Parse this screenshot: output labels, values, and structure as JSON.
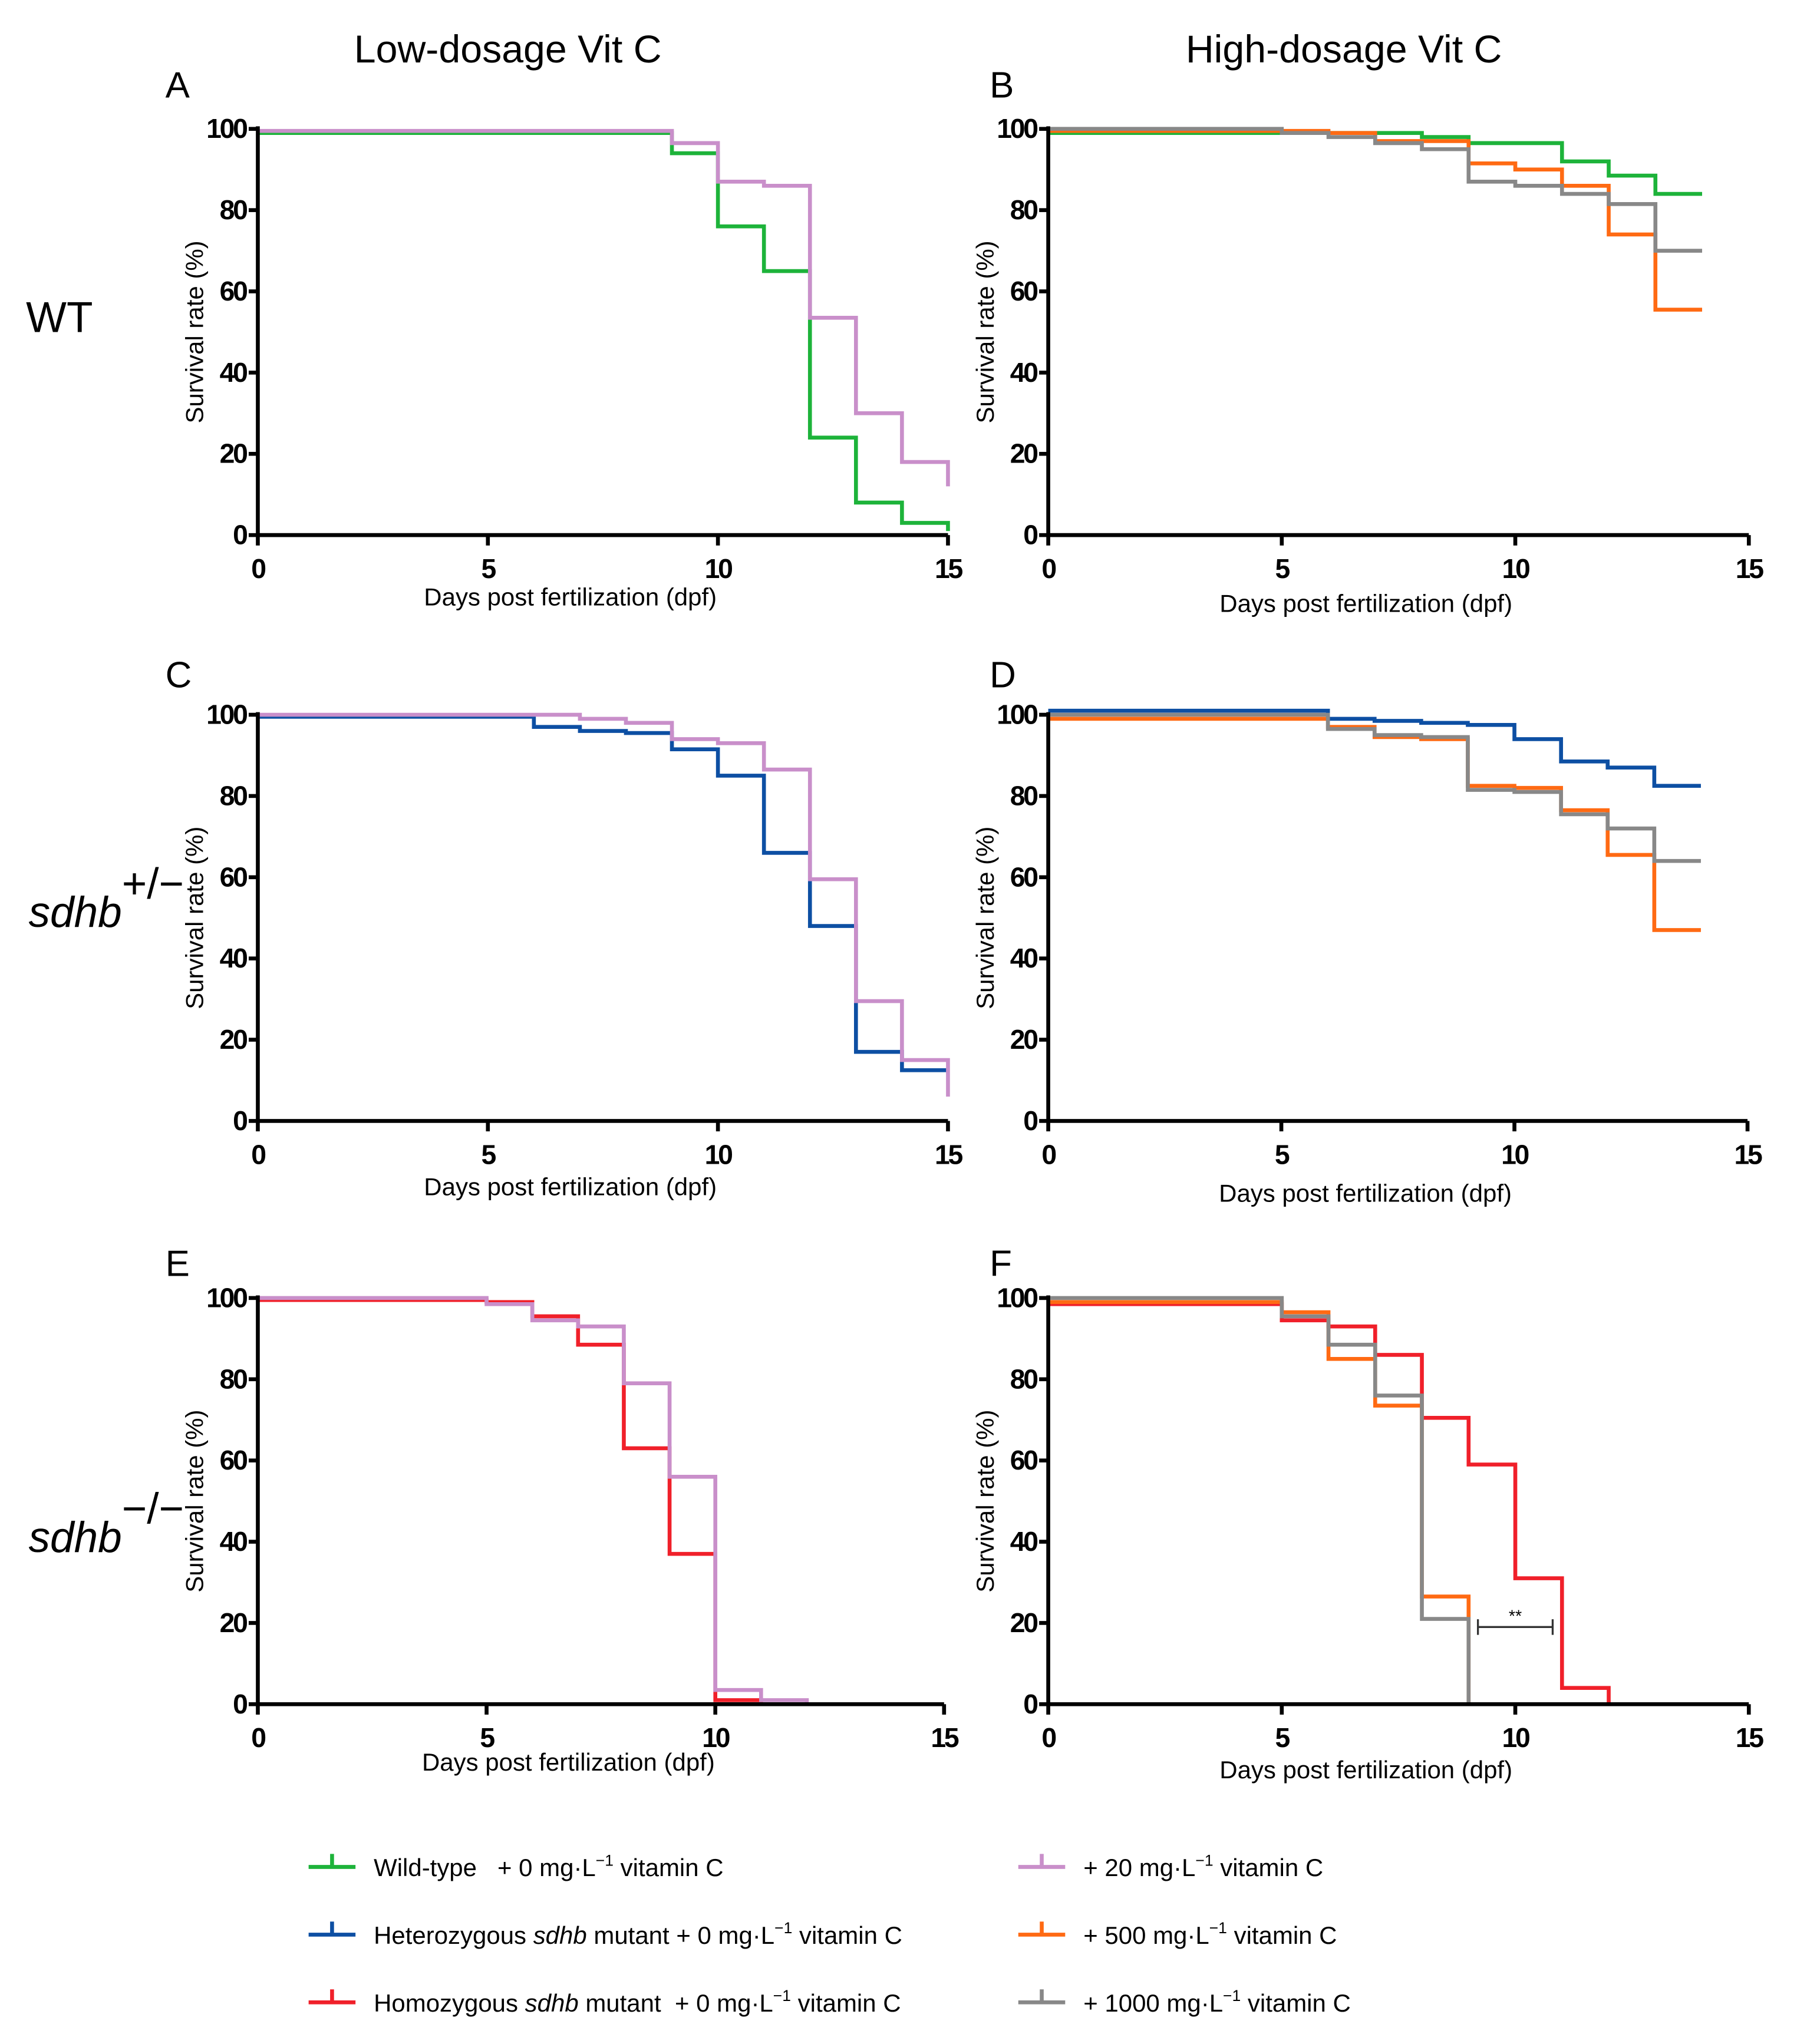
{
  "column_titles": [
    "Low-dosage Vit C",
    "High-dosage Vit C"
  ],
  "row_labels": [
    {
      "main": "WT",
      "sup": ""
    },
    {
      "main": "sdhb",
      "sup": "+/−"
    },
    {
      "main": "sdhb",
      "sup": "−/−"
    }
  ],
  "colors": {
    "wildtype": "#1db33a",
    "heterozygous": "#0d4fa3",
    "homozygous": "#f0202a",
    "vitc20": "#c98fca",
    "vitc500": "#ff6a13",
    "vitc1000": "#888888"
  },
  "legend": [
    {
      "key": "wildtype",
      "pre": "Wild-type",
      "italic": "",
      "post": "",
      "dose": "   + 0 mg·L",
      "sup": "−1",
      "tail": " vitamin C"
    },
    {
      "key": "heterozygous",
      "pre": "Heterozygous ",
      "italic": "sdhb",
      "post": " mutant",
      "dose": " + 0 mg·L",
      "sup": "−1",
      "tail": " vitamin C"
    },
    {
      "key": "homozygous",
      "pre": "Homozygous ",
      "italic": "sdhb",
      "post": " mutant",
      "dose": "  + 0 mg·L",
      "sup": "−1",
      "tail": " vitamin C"
    },
    {
      "key": "vitc20",
      "pre": "",
      "italic": "",
      "post": "",
      "dose": "+ 20 mg·L",
      "sup": "−1",
      "tail": " vitamin C"
    },
    {
      "key": "vitc500",
      "pre": "",
      "italic": "",
      "post": "",
      "dose": "+ 500 mg·L",
      "sup": "−1",
      "tail": " vitamin C"
    },
    {
      "key": "vitc1000",
      "pre": "",
      "italic": "",
      "post": "",
      "dose": "+ 1000 mg·L",
      "sup": "−1",
      "tail": " vitamin C"
    }
  ],
  "chart_data": [
    {
      "panel": "A",
      "type": "line",
      "step": true,
      "xlabel": "Days post fertilization (dpf)",
      "ylabel": "Survival rate (%)",
      "xlim": [
        0,
        15
      ],
      "ylim": [
        0,
        100
      ],
      "xticks": [
        "0",
        "5",
        "10",
        "15"
      ],
      "yticks": [
        "0",
        "20",
        "40",
        "60",
        "80",
        "100"
      ],
      "grid": false,
      "series": [
        {
          "name": "Wild-type + 0 mg/L vitamin C",
          "key": "wildtype",
          "steps": [
            [
              0,
              99
            ],
            [
              9,
              94
            ],
            [
              10,
              76
            ],
            [
              11,
              65
            ],
            [
              12,
              24
            ],
            [
              13,
              8
            ],
            [
              14,
              3
            ],
            [
              15,
              1
            ]
          ],
          "end": 15
        },
        {
          "name": "+ 20 mg/L vitamin C",
          "key": "vitc20",
          "steps": [
            [
              0,
              99.5
            ],
            [
              9,
              96.5
            ],
            [
              10,
              87
            ],
            [
              11,
              86
            ],
            [
              12,
              53.5
            ],
            [
              13,
              30
            ],
            [
              14,
              18
            ],
            [
              15,
              12
            ]
          ],
          "end": 15
        }
      ]
    },
    {
      "panel": "B",
      "type": "line",
      "step": true,
      "xlabel": "Days post fertilization (dpf)",
      "ylabel": "Survival rate (%)",
      "xlim": [
        0,
        15
      ],
      "ylim": [
        0,
        100
      ],
      "xticks": [
        "0",
        "5",
        "10",
        "15"
      ],
      "yticks": [
        "0",
        "20",
        "40",
        "60",
        "80",
        "100"
      ],
      "grid": false,
      "series": [
        {
          "name": "Wild-type + 0 mg/L vitamin C",
          "key": "wildtype",
          "steps": [
            [
              0,
              99
            ],
            [
              8,
              98
            ],
            [
              9,
              96.5
            ],
            [
              11,
              92
            ],
            [
              12,
              88.5
            ],
            [
              13,
              84
            ]
          ],
          "end": 14
        },
        {
          "name": "+ 500 mg/L vitamin C",
          "key": "vitc500",
          "steps": [
            [
              0,
              99.5
            ],
            [
              6,
              99
            ],
            [
              7,
              97
            ],
            [
              9,
              91.5
            ],
            [
              10,
              90
            ],
            [
              11,
              86
            ],
            [
              12,
              74
            ],
            [
              13,
              55.5
            ]
          ],
          "end": 14
        },
        {
          "name": "+ 1000 mg/L vitamin C",
          "key": "vitc1000",
          "steps": [
            [
              0,
              100
            ],
            [
              5,
              99
            ],
            [
              6,
              98
            ],
            [
              7,
              96.5
            ],
            [
              8,
              95
            ],
            [
              9,
              87
            ],
            [
              10,
              86
            ],
            [
              11,
              84
            ],
            [
              12,
              81.5
            ],
            [
              13,
              70
            ]
          ],
          "end": 14
        }
      ]
    },
    {
      "panel": "C",
      "type": "line",
      "step": true,
      "xlabel": "Days post fertilization (dpf)",
      "ylabel": "Survival rate (%)",
      "xlim": [
        0,
        15
      ],
      "ylim": [
        0,
        100
      ],
      "xticks": [
        "0",
        "5",
        "10",
        "15"
      ],
      "yticks": [
        "0",
        "20",
        "40",
        "60",
        "80",
        "100"
      ],
      "grid": false,
      "series": [
        {
          "name": "Heterozygous sdhb mutant + 0 mg/L vitamin C",
          "key": "heterozygous",
          "steps": [
            [
              0,
              99.5
            ],
            [
              6,
              97
            ],
            [
              7,
              96
            ],
            [
              8,
              95.5
            ],
            [
              9,
              91.5
            ],
            [
              10,
              85
            ],
            [
              11,
              66
            ],
            [
              12,
              48
            ],
            [
              13,
              17
            ],
            [
              14,
              12.5
            ]
          ],
          "end": 15
        },
        {
          "name": "+ 20 mg/L vitamin C",
          "key": "vitc20",
          "steps": [
            [
              0,
              100
            ],
            [
              7,
              99
            ],
            [
              8,
              98
            ],
            [
              9,
              94
            ],
            [
              10,
              93
            ],
            [
              11,
              86.5
            ],
            [
              12,
              59.5
            ],
            [
              13,
              29.5
            ],
            [
              14,
              15
            ],
            [
              15,
              6
            ]
          ],
          "end": 15
        }
      ]
    },
    {
      "panel": "D",
      "type": "line",
      "step": true,
      "xlabel": "Days post fertilization (dpf)",
      "ylabel": "Survival rate (%)",
      "xlim": [
        0,
        15
      ],
      "ylim": [
        0,
        100
      ],
      "xticks": [
        "0",
        "5",
        "10",
        "15"
      ],
      "yticks": [
        "0",
        "20",
        "40",
        "60",
        "80",
        "100"
      ],
      "grid": false,
      "series": [
        {
          "name": "Heterozygous sdhb mutant + 0 mg/L vitamin C",
          "key": "heterozygous",
          "steps": [
            [
              0,
              101
            ],
            [
              6,
              99
            ],
            [
              7,
              98.5
            ],
            [
              8,
              98
            ],
            [
              9,
              97.5
            ],
            [
              10,
              94
            ],
            [
              11,
              88.5
            ],
            [
              12,
              87
            ],
            [
              13,
              82.5
            ]
          ],
          "end": 14
        },
        {
          "name": "+ 500 mg/L vitamin C",
          "key": "vitc500",
          "steps": [
            [
              0,
              99
            ],
            [
              6,
              97
            ],
            [
              7,
              94.5
            ],
            [
              8,
              94
            ],
            [
              9,
              82.5
            ],
            [
              10,
              82
            ],
            [
              11,
              76.5
            ],
            [
              12,
              65.5
            ],
            [
              13,
              47
            ]
          ],
          "end": 14
        },
        {
          "name": "+ 1000 mg/L vitamin C",
          "key": "vitc1000",
          "steps": [
            [
              0,
              100
            ],
            [
              6,
              96.5
            ],
            [
              7,
              95
            ],
            [
              8,
              94.5
            ],
            [
              9,
              81.5
            ],
            [
              10,
              81
            ],
            [
              11,
              75.5
            ],
            [
              12,
              72
            ],
            [
              13,
              64
            ]
          ],
          "end": 14
        }
      ]
    },
    {
      "panel": "E",
      "type": "line",
      "step": true,
      "xlabel": "Days post fertilization (dpf)",
      "ylabel": "Survival rate (%)",
      "xlim": [
        0,
        15
      ],
      "ylim": [
        0,
        100
      ],
      "xticks": [
        "0",
        "5",
        "10",
        "15"
      ],
      "yticks": [
        "0",
        "20",
        "40",
        "60",
        "80",
        "100"
      ],
      "grid": false,
      "series": [
        {
          "name": "Homozygous sdhb mutant + 0 mg/L vitamin C",
          "key": "homozygous",
          "steps": [
            [
              0,
              99.5
            ],
            [
              5,
              99
            ],
            [
              6,
              95.5
            ],
            [
              7,
              88.5
            ],
            [
              8,
              63
            ],
            [
              9,
              37
            ],
            [
              10,
              1
            ],
            [
              11,
              0
            ]
          ],
          "end": 11
        },
        {
          "name": "+ 20 mg/L vitamin C",
          "key": "vitc20",
          "steps": [
            [
              0,
              100
            ],
            [
              5,
              98.5
            ],
            [
              6,
              94.5
            ],
            [
              7,
              93
            ],
            [
              8,
              79
            ],
            [
              9,
              56
            ],
            [
              10,
              3.5
            ],
            [
              11,
              1
            ],
            [
              12,
              0
            ]
          ],
          "end": 12
        }
      ]
    },
    {
      "panel": "F",
      "type": "line",
      "step": true,
      "xlabel": "Days post fertilization (dpf)",
      "ylabel": "Survival rate (%)",
      "xlim": [
        0,
        15
      ],
      "ylim": [
        0,
        100
      ],
      "xticks": [
        "0",
        "5",
        "10",
        "15"
      ],
      "yticks": [
        "0",
        "20",
        "40",
        "60",
        "80",
        "100"
      ],
      "grid": false,
      "annotation": {
        "text": "**",
        "x_from": 9.2,
        "x_to": 10.8,
        "y": 19
      },
      "series": [
        {
          "name": "Homozygous sdhb mutant + 0 mg/L vitamin C",
          "key": "homozygous",
          "steps": [
            [
              0,
              98.5
            ],
            [
              5,
              94.5
            ],
            [
              6,
              93
            ],
            [
              7,
              86
            ],
            [
              8,
              70.5
            ],
            [
              9,
              59
            ],
            [
              10,
              31
            ],
            [
              11,
              4
            ],
            [
              12,
              0
            ]
          ],
          "end": 12
        },
        {
          "name": "+ 500 mg/L vitamin C",
          "key": "vitc500",
          "steps": [
            [
              0,
              99
            ],
            [
              5,
              96.5
            ],
            [
              6,
              85
            ],
            [
              7,
              73.5
            ],
            [
              8,
              26.5
            ],
            [
              9,
              0
            ]
          ],
          "end": 9
        },
        {
          "name": "+ 1000 mg/L vitamin C",
          "key": "vitc1000",
          "steps": [
            [
              0,
              100
            ],
            [
              5,
              95.5
            ],
            [
              6,
              88.5
            ],
            [
              7,
              76
            ],
            [
              8,
              21
            ],
            [
              9,
              0
            ]
          ],
          "end": 9
        }
      ]
    }
  ]
}
